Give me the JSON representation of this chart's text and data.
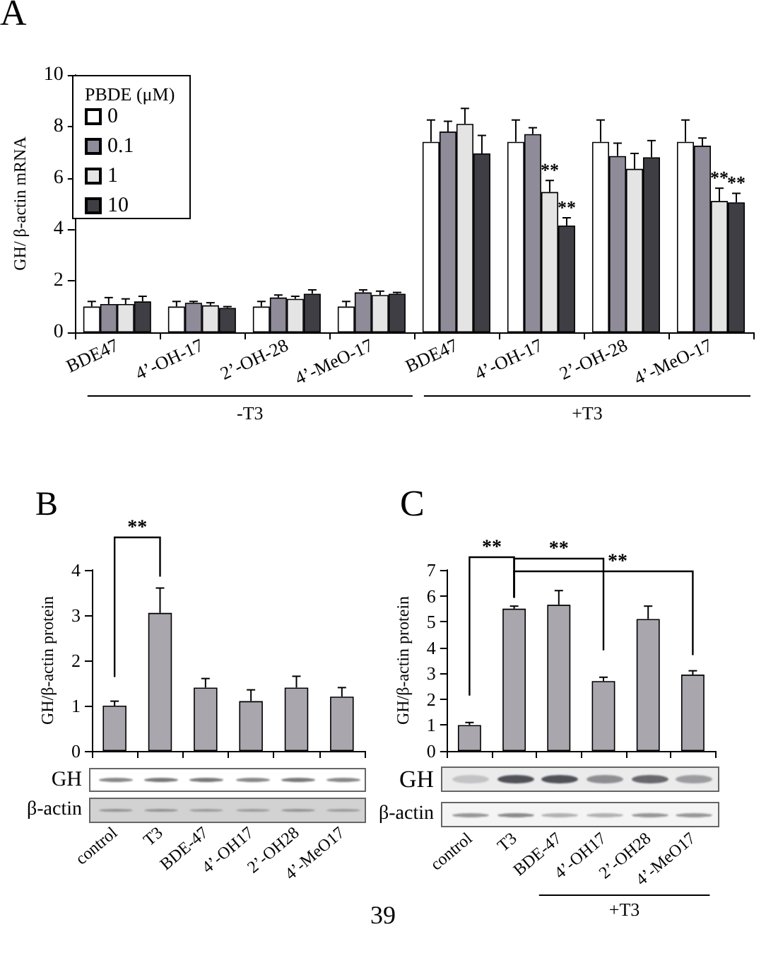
{
  "chart_data": [
    {
      "type": "bar",
      "title": "A",
      "ylabel": "GH/ β-actin mRNA",
      "categories": [
        "BDE47",
        "4’-OH-17",
        "2’-OH-28",
        "4’-MeO-17",
        "BDE47",
        "4’-OH-17",
        "2’-OH-28",
        "4’-MeO-17"
      ],
      "series": [
        {
          "name": "0",
          "color": "#ffffff",
          "values": [
            1.0,
            1.0,
            1.0,
            1.0,
            7.4,
            7.4,
            7.4,
            7.4
          ],
          "errors": [
            [
              1.0,
              1.2
            ],
            [
              1.0,
              1.2
            ],
            [
              1.0,
              1.2
            ],
            [
              1.0,
              1.2
            ],
            [
              7.4,
              8.25
            ],
            [
              7.4,
              8.25
            ],
            [
              7.4,
              8.25
            ],
            [
              7.4,
              8.25
            ]
          ]
        },
        {
          "name": "0.1",
          "color": "#8f8b99",
          "values": [
            1.1,
            1.15,
            1.35,
            1.55,
            7.8,
            7.7,
            6.85,
            7.25
          ],
          "errors": [
            [
              1.1,
              1.35
            ],
            [
              1.15,
              1.2
            ],
            [
              1.35,
              1.45
            ],
            [
              1.55,
              1.65
            ],
            [
              7.8,
              8.2
            ],
            [
              7.7,
              7.95
            ],
            [
              6.85,
              7.35
            ],
            [
              7.25,
              7.55
            ]
          ]
        },
        {
          "name": "1",
          "color": "#e4e4e4",
          "values": [
            1.1,
            1.05,
            1.3,
            1.45,
            8.1,
            5.45,
            6.35,
            5.1
          ],
          "errors": [
            [
              1.1,
              1.3
            ],
            [
              1.05,
              1.15
            ],
            [
              1.3,
              1.4
            ],
            [
              1.45,
              1.6
            ],
            [
              8.1,
              8.7
            ],
            [
              5.45,
              5.9
            ],
            [
              6.35,
              6.95
            ],
            [
              5.1,
              5.6
            ]
          ],
          "value_labels": [
            null,
            null,
            null,
            null,
            null,
            "**",
            null,
            "**"
          ]
        },
        {
          "name": "10",
          "color": "#3e3e44",
          "values": [
            1.2,
            0.95,
            1.5,
            1.5,
            6.95,
            4.15,
            6.8,
            5.05
          ],
          "errors": [
            [
              1.2,
              1.4
            ],
            [
              0.95,
              1.0
            ],
            [
              1.5,
              1.65
            ],
            [
              1.5,
              1.55
            ],
            [
              6.95,
              7.65
            ],
            [
              4.15,
              4.45
            ],
            [
              6.8,
              7.45
            ],
            [
              5.05,
              5.4
            ]
          ],
          "value_labels": [
            null,
            null,
            null,
            null,
            null,
            "**",
            null,
            "**"
          ]
        }
      ],
      "ylim": [
        0,
        10
      ],
      "yticks": [
        0,
        2,
        4,
        6,
        8,
        10
      ],
      "legend": "top left",
      "legend_title": "PBDE (μM)",
      "annotations": [
        "-T3",
        "+T3"
      ]
    },
    {
      "type": "bar",
      "title": "B",
      "ylabel": "GH/β-actin protein",
      "categories": [
        "control",
        "T3",
        "BDE-47",
        "4’-OH17",
        "2’-OH28",
        "4’-MeO17"
      ],
      "values": [
        1.0,
        3.05,
        1.4,
        1.1,
        1.4,
        1.2
      ],
      "errors": [
        [
          1.0,
          1.1
        ],
        [
          3.05,
          3.6
        ],
        [
          1.4,
          1.6
        ],
        [
          1.1,
          1.35
        ],
        [
          1.4,
          1.65
        ],
        [
          1.2,
          1.4
        ]
      ],
      "color": "#aaa6ad",
      "ylim": [
        0,
        4
      ],
      "yticks": [
        0,
        1,
        2,
        3,
        4
      ],
      "annotations": [
        "**",
        "GH",
        "β-actin"
      ]
    },
    {
      "type": "bar",
      "title": "C",
      "ylabel": "GH/β-actin protein",
      "categories": [
        "control",
        "T3",
        "BDE-47",
        "4’-OH17",
        "2’-OH28",
        "4’-MeO17"
      ],
      "values": [
        1.0,
        5.5,
        5.65,
        2.7,
        5.1,
        2.95
      ],
      "errors": [
        [
          1.0,
          1.1
        ],
        [
          5.5,
          5.6
        ],
        [
          5.65,
          6.2
        ],
        [
          2.7,
          2.85
        ],
        [
          5.1,
          5.6
        ],
        [
          2.95,
          3.1
        ]
      ],
      "color": "#aaa6ad",
      "ylim": [
        0,
        7
      ],
      "yticks": [
        0,
        1,
        2,
        3,
        4,
        5,
        6,
        7
      ],
      "annotations": [
        "**",
        "**",
        "**",
        "GH",
        "β-actin",
        "+T3",
        "39"
      ]
    }
  ]
}
